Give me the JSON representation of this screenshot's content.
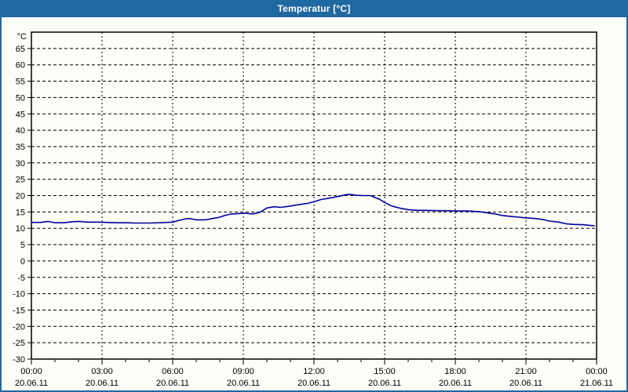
{
  "window": {
    "title": "Temperatur [°C]"
  },
  "colors": {
    "titlebar": "#2068a0",
    "window_frame": "#2068a0",
    "background": "#fcfdf6",
    "plot_border": "#000000",
    "grid": "#000000",
    "text": "#000000",
    "line": "#0000a0"
  },
  "chart_data": {
    "type": "line",
    "title": "Temperatur [°C]",
    "unit_label": "°C",
    "ylabel": "Temperatur",
    "xlabel": "",
    "ylim": [
      -30,
      70
    ],
    "ytick_step": 5,
    "yticks": [
      65,
      60,
      55,
      50,
      45,
      40,
      35,
      30,
      25,
      20,
      15,
      10,
      5,
      0,
      -5,
      -10,
      -15,
      -20,
      -25,
      -30
    ],
    "xlim_hours": [
      0,
      24
    ],
    "x_minor_step_hours": 1,
    "grid": "dashed",
    "legend": "none",
    "x_major_ticks": [
      {
        "hour": 0,
        "time": "00:00",
        "date": "20.06.11"
      },
      {
        "hour": 3,
        "time": "03:00",
        "date": "20.06.11"
      },
      {
        "hour": 6,
        "time": "06:00",
        "date": "20.06.11"
      },
      {
        "hour": 9,
        "time": "09:00",
        "date": "20.06.11"
      },
      {
        "hour": 12,
        "time": "12:00",
        "date": "20.06.11"
      },
      {
        "hour": 15,
        "time": "15:00",
        "date": "20.06.11"
      },
      {
        "hour": 18,
        "time": "18:00",
        "date": "20.06.11"
      },
      {
        "hour": 21,
        "time": "21:00",
        "date": "20.06.11"
      },
      {
        "hour": 24,
        "time": "00:00",
        "date": "21.06.11"
      }
    ],
    "series": [
      {
        "name": "Temperatur",
        "color": "#0000a0",
        "points": [
          [
            0.0,
            11.8
          ],
          [
            0.4,
            11.8
          ],
          [
            0.7,
            12.1
          ],
          [
            1.0,
            11.7
          ],
          [
            1.4,
            11.7
          ],
          [
            1.7,
            12.0
          ],
          [
            2.0,
            12.1
          ],
          [
            2.4,
            11.9
          ],
          [
            2.8,
            11.9
          ],
          [
            3.2,
            11.8
          ],
          [
            3.6,
            11.7
          ],
          [
            4.0,
            11.7
          ],
          [
            4.4,
            11.6
          ],
          [
            5.0,
            11.6
          ],
          [
            5.5,
            11.7
          ],
          [
            6.0,
            11.9
          ],
          [
            6.2,
            12.3
          ],
          [
            6.5,
            12.8
          ],
          [
            6.7,
            13.0
          ],
          [
            7.0,
            12.6
          ],
          [
            7.4,
            12.6
          ],
          [
            7.7,
            13.0
          ],
          [
            8.0,
            13.4
          ],
          [
            8.2,
            13.9
          ],
          [
            8.5,
            14.4
          ],
          [
            8.8,
            14.5
          ],
          [
            9.1,
            14.6
          ],
          [
            9.4,
            14.4
          ],
          [
            9.7,
            14.9
          ],
          [
            10.0,
            16.2
          ],
          [
            10.3,
            16.6
          ],
          [
            10.6,
            16.4
          ],
          [
            11.0,
            16.8
          ],
          [
            11.4,
            17.3
          ],
          [
            11.7,
            17.6
          ],
          [
            12.0,
            18.1
          ],
          [
            12.3,
            18.8
          ],
          [
            12.7,
            19.3
          ],
          [
            13.0,
            19.7
          ],
          [
            13.3,
            20.2
          ],
          [
            13.5,
            20.4
          ],
          [
            13.8,
            20.1
          ],
          [
            14.1,
            20.0
          ],
          [
            14.4,
            20.0
          ],
          [
            14.6,
            19.4
          ],
          [
            14.8,
            18.8
          ],
          [
            15.0,
            17.9
          ],
          [
            15.3,
            16.8
          ],
          [
            15.7,
            16.1
          ],
          [
            16.0,
            15.7
          ],
          [
            16.4,
            15.5
          ],
          [
            16.8,
            15.5
          ],
          [
            17.2,
            15.4
          ],
          [
            17.6,
            15.4
          ],
          [
            18.0,
            15.3
          ],
          [
            18.5,
            15.3
          ],
          [
            19.0,
            15.1
          ],
          [
            19.3,
            14.8
          ],
          [
            19.7,
            14.4
          ],
          [
            20.0,
            13.9
          ],
          [
            20.4,
            13.6
          ],
          [
            20.7,
            13.4
          ],
          [
            21.0,
            13.2
          ],
          [
            21.4,
            13.0
          ],
          [
            21.7,
            12.7
          ],
          [
            22.0,
            12.2
          ],
          [
            22.4,
            11.9
          ],
          [
            22.7,
            11.4
          ],
          [
            23.0,
            11.2
          ],
          [
            23.4,
            11.1
          ],
          [
            23.7,
            10.9
          ],
          [
            23.9,
            10.8
          ]
        ]
      }
    ]
  }
}
